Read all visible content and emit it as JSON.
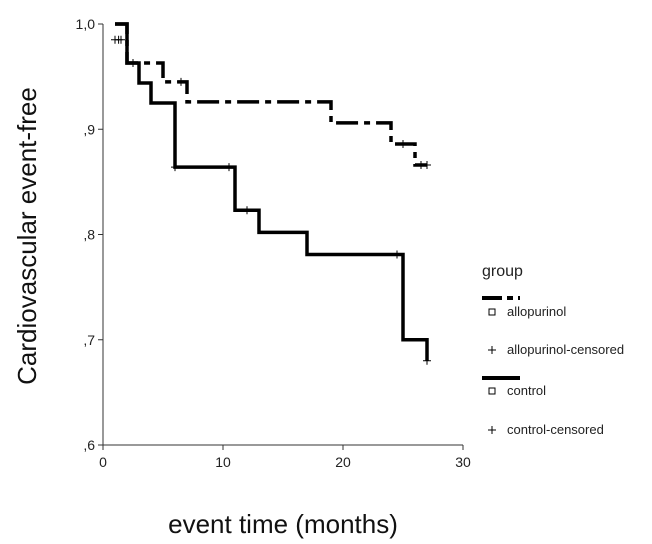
{
  "chart_data": {
    "type": "line",
    "title": "",
    "xlabel": "event time (months)",
    "ylabel": "Cardiovascular event-free",
    "xlim": [
      0,
      30
    ],
    "ylim": [
      0.6,
      1.0
    ],
    "x_ticks": [
      0,
      10,
      20,
      30
    ],
    "x_tick_labels": [
      "0",
      "10",
      "20",
      "30"
    ],
    "y_ticks": [
      0.6,
      0.7,
      0.8,
      0.9,
      1.0
    ],
    "y_tick_labels": [
      ",6",
      ",7",
      ",8",
      ",9",
      "1,0"
    ],
    "grid": false,
    "legend": {
      "title": "group",
      "position": "right",
      "entries": [
        {
          "label": "allopurinol",
          "marker": "square"
        },
        {
          "label": "allopurinol-censored",
          "marker": "plus"
        },
        {
          "label": "control",
          "marker": "square"
        },
        {
          "label": "control-censored",
          "marker": "plus"
        }
      ]
    },
    "series": [
      {
        "name": "allopurinol",
        "style": "dash-dot",
        "color": "#000000",
        "steps": [
          [
            1,
            1.0
          ],
          [
            2,
            0.963
          ],
          [
            5,
            0.945
          ],
          [
            7,
            0.926
          ],
          [
            19,
            0.906
          ],
          [
            24,
            0.886
          ],
          [
            26,
            0.866
          ],
          [
            27,
            0.866
          ]
        ],
        "censored": [
          [
            1.3,
            0.985
          ],
          [
            2.5,
            0.963
          ],
          [
            6.5,
            0.945
          ],
          [
            25.0,
            0.886
          ],
          [
            26.5,
            0.866
          ],
          [
            27.0,
            0.866
          ]
        ]
      },
      {
        "name": "control",
        "style": "solid",
        "color": "#000000",
        "steps": [
          [
            1,
            1.0
          ],
          [
            2,
            0.963
          ],
          [
            3,
            0.944
          ],
          [
            4,
            0.925
          ],
          [
            6,
            0.864
          ],
          [
            11,
            0.823
          ],
          [
            13,
            0.802
          ],
          [
            17,
            0.781
          ],
          [
            25,
            0.7
          ],
          [
            27,
            0.68
          ]
        ],
        "censored": [
          [
            1.0,
            0.985
          ],
          [
            1.5,
            0.985
          ],
          [
            6.0,
            0.864
          ],
          [
            10.5,
            0.864
          ],
          [
            12.0,
            0.823
          ],
          [
            24.5,
            0.781
          ],
          [
            27.0,
            0.68
          ]
        ]
      }
    ]
  }
}
